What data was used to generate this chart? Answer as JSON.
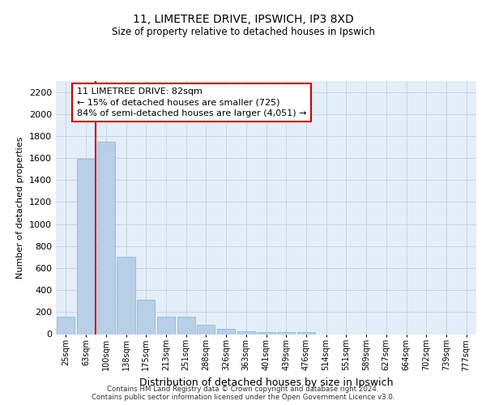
{
  "title1": "11, LIMETREE DRIVE, IPSWICH, IP3 8XD",
  "title2": "Size of property relative to detached houses in Ipswich",
  "xlabel": "Distribution of detached houses by size in Ipswich",
  "ylabel": "Number of detached properties",
  "categories": [
    "25sqm",
    "63sqm",
    "100sqm",
    "138sqm",
    "175sqm",
    "213sqm",
    "251sqm",
    "288sqm",
    "326sqm",
    "363sqm",
    "401sqm",
    "439sqm",
    "476sqm",
    "514sqm",
    "551sqm",
    "589sqm",
    "627sqm",
    "664sqm",
    "702sqm",
    "739sqm",
    "777sqm"
  ],
  "values": [
    160,
    1590,
    1750,
    700,
    310,
    155,
    155,
    85,
    50,
    25,
    20,
    20,
    20,
    0,
    0,
    0,
    0,
    0,
    0,
    0,
    0
  ],
  "bar_color": "#b8cfe8",
  "bar_edge_color": "#8ab0d0",
  "grid_color": "#c5d5e5",
  "background_color": "#e4eef8",
  "vline_color": "#cc0000",
  "vline_x": 1.5,
  "annotation_text": "11 LIMETREE DRIVE: 82sqm\n← 15% of detached houses are smaller (725)\n84% of semi-detached houses are larger (4,051) →",
  "annotation_box_color": "#ffffff",
  "annotation_box_edge": "#cc0000",
  "footer1": "Contains HM Land Registry data © Crown copyright and database right 2024.",
  "footer2": "Contains public sector information licensed under the Open Government Licence v3.0.",
  "ylim": [
    0,
    2300
  ],
  "yticks": [
    0,
    200,
    400,
    600,
    800,
    1000,
    1200,
    1400,
    1600,
    1800,
    2000,
    2200
  ]
}
